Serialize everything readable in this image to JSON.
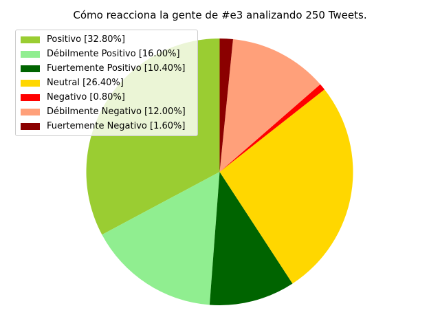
{
  "chart_data": {
    "type": "pie",
    "title": "Cómo reacciona la gente de #e3 analizando 250 Tweets.",
    "start_angle_deg": 90,
    "direction": "counterclockwise",
    "legend_placement": "upper-left",
    "slices": [
      {
        "label": "Positivo [32.80%]",
        "value": 32.8,
        "color": "#9acd32"
      },
      {
        "label": "Débilmente Positivo [16.00%]",
        "value": 16.0,
        "color": "#90ee90"
      },
      {
        "label": "Fuertemente Positivo [10.40%]",
        "value": 10.4,
        "color": "#006400"
      },
      {
        "label": "Neutral [26.40%]",
        "value": 26.4,
        "color": "#ffd700"
      },
      {
        "label": "Negativo [0.80%]",
        "value": 0.8,
        "color": "#ff0000"
      },
      {
        "label": "Débilmente Negativo [12.00%]",
        "value": 12.0,
        "color": "#ffa07a"
      },
      {
        "label": "Fuertemente Negativo [1.60%]",
        "value": 1.6,
        "color": "#8b0000"
      }
    ]
  }
}
